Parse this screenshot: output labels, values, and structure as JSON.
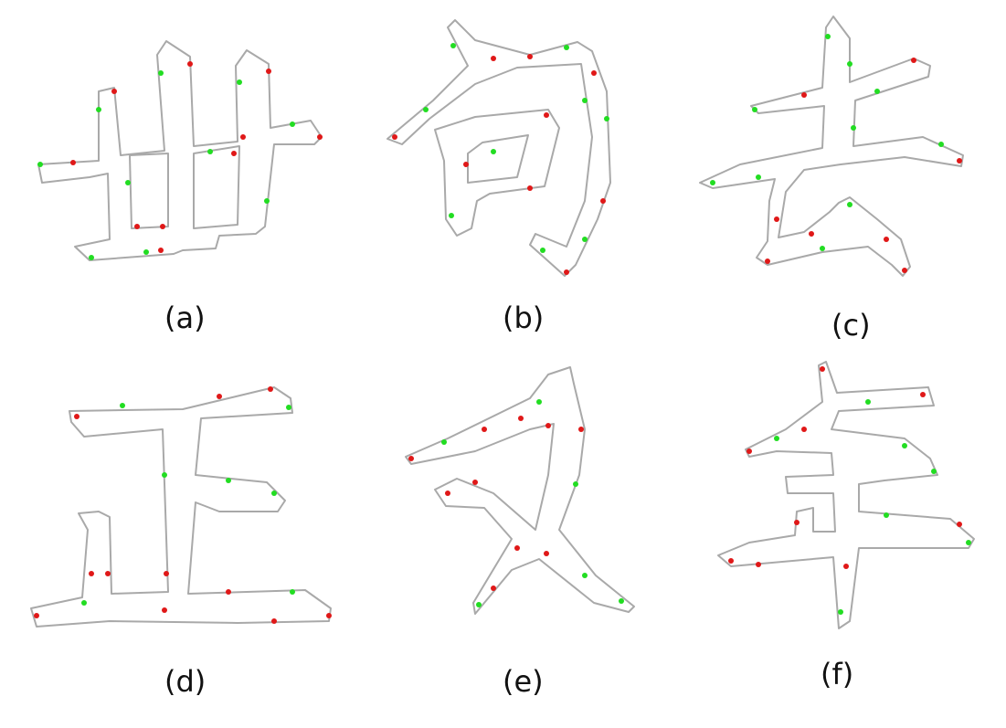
{
  "figure": {
    "panels": [
      {
        "id": "a",
        "label": "(a)",
        "character": "世"
      },
      {
        "id": "b",
        "label": "(b)",
        "character": "句"
      },
      {
        "id": "c",
        "label": "(c)",
        "character": "去"
      },
      {
        "id": "d",
        "label": "(d)",
        "character": "正"
      },
      {
        "id": "e",
        "label": "(e)",
        "character": "又"
      },
      {
        "id": "f",
        "label": "(f)",
        "character": "年"
      }
    ],
    "colors": {
      "outline": "#a9a9a9",
      "green_mark": "#22dd22",
      "red_mark": "#e01818",
      "background": "#ffffff"
    }
  }
}
